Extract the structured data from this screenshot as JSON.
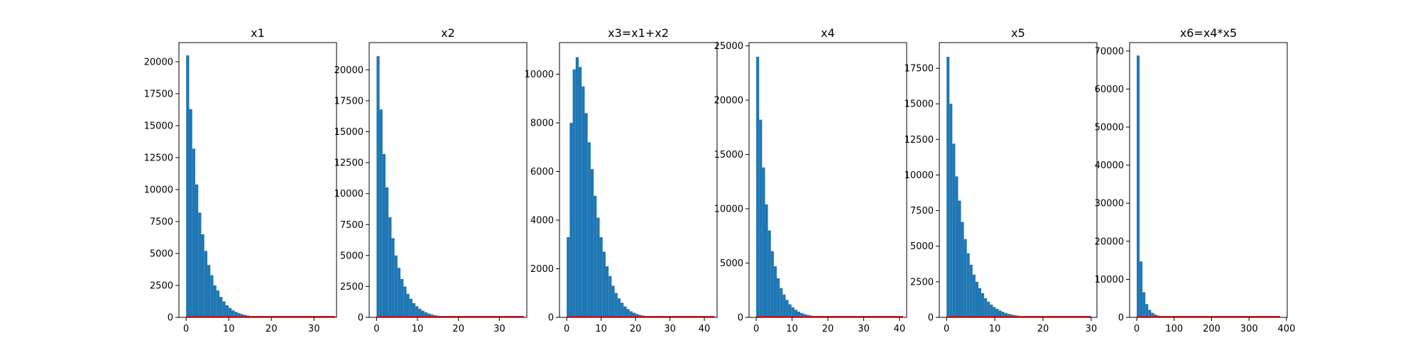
{
  "figure": {
    "background": "#ffffff",
    "bar_color": "#1f77b4",
    "overlay_line_color": "#d62728"
  },
  "chart_data": [
    {
      "type": "bar",
      "title": "x1",
      "xlim": [
        -1.7,
        35.3
      ],
      "ylim": [
        0,
        21500
      ],
      "xticks": [
        0,
        10,
        20,
        30
      ],
      "yticks": [
        0,
        2500,
        5000,
        7500,
        10000,
        12500,
        15000,
        17500,
        20000
      ],
      "bin_edges": [
        0,
        0.71,
        1.42,
        2.13,
        2.84,
        3.55,
        4.26,
        4.97,
        5.68,
        6.39,
        7.1,
        7.81,
        8.52,
        9.23,
        9.94,
        10.65,
        11.36,
        12.07,
        12.78,
        13.49,
        14.2,
        14.91,
        15.62,
        16.33,
        17.04,
        17.75
      ],
      "counts": [
        20500,
        16300,
        13200,
        10400,
        8200,
        6500,
        5200,
        4100,
        3300,
        2500,
        2100,
        1600,
        1250,
        950,
        740,
        560,
        430,
        330,
        250,
        190,
        140,
        105,
        80,
        60,
        45
      ],
      "overlay_line": {
        "x": [
          0,
          35
        ],
        "y": [
          0,
          0
        ]
      }
    },
    {
      "type": "bar",
      "title": "x2",
      "xlim": [
        -1.8,
        36.7
      ],
      "ylim": [
        0,
        22200
      ],
      "xticks": [
        0,
        10,
        20,
        30
      ],
      "yticks": [
        0,
        2500,
        5000,
        7500,
        10000,
        12500,
        15000,
        17500,
        20000
      ],
      "bin_edges": [
        0,
        0.73,
        1.46,
        2.19,
        2.92,
        3.65,
        4.38,
        5.11,
        5.84,
        6.57,
        7.3,
        8.03,
        8.76,
        9.49,
        10.22,
        10.95,
        11.68,
        12.41,
        13.14,
        13.87,
        14.6,
        15.33,
        16.06,
        16.79,
        17.52,
        18.25
      ],
      "counts": [
        21100,
        16800,
        13200,
        10500,
        8100,
        6400,
        5000,
        4000,
        3100,
        2500,
        1900,
        1500,
        1150,
        900,
        700,
        540,
        410,
        310,
        240,
        180,
        135,
        100,
        75,
        55,
        40
      ],
      "overlay_line": {
        "x": [
          0,
          36
        ],
        "y": [
          0,
          0
        ]
      }
    },
    {
      "type": "bar",
      "title": "x3=x1+x2",
      "xlim": [
        -2.1,
        43.7
      ],
      "ylim": [
        0,
        11300
      ],
      "xticks": [
        0,
        10,
        20,
        30,
        40
      ],
      "yticks": [
        0,
        2000,
        4000,
        6000,
        8000,
        10000
      ],
      "bin_edges": [
        0,
        0.87,
        1.74,
        2.61,
        3.48,
        4.35,
        5.22,
        6.09,
        6.96,
        7.83,
        8.7,
        9.57,
        10.44,
        11.31,
        12.18,
        13.05,
        13.92,
        14.79,
        15.66,
        16.53,
        17.4,
        18.27,
        19.14,
        20.01,
        20.88,
        21.75,
        22.62,
        23.49,
        24.36,
        25.23,
        26.1,
        26.97,
        27.84
      ],
      "counts": [
        3300,
        8000,
        10200,
        10700,
        10300,
        9500,
        8400,
        7200,
        6100,
        5000,
        4100,
        3300,
        2700,
        2100,
        1700,
        1300,
        1000,
        780,
        600,
        450,
        340,
        250,
        190,
        140,
        100,
        75,
        55,
        40,
        30,
        20,
        15,
        10
      ],
      "overlay_line": {
        "x": [
          0,
          43
        ],
        "y": [
          0,
          0
        ]
      }
    },
    {
      "type": "bar",
      "title": "x4",
      "xlim": [
        -2.0,
        42.0
      ],
      "ylim": [
        0,
        25300
      ],
      "xticks": [
        0,
        10,
        20,
        30,
        40
      ],
      "yticks": [
        0,
        5000,
        10000,
        15000,
        20000,
        25000
      ],
      "bin_edges": [
        0,
        0.82,
        1.64,
        2.46,
        3.28,
        4.1,
        4.92,
        5.74,
        6.56,
        7.38,
        8.2,
        9.02,
        9.84,
        10.66,
        11.48,
        12.3,
        13.12,
        13.94,
        14.76,
        15.58,
        16.4,
        17.22,
        18.04,
        18.86,
        19.68,
        20.5
      ],
      "counts": [
        24000,
        18200,
        13800,
        10400,
        8000,
        6100,
        4700,
        3600,
        2700,
        2100,
        1600,
        1200,
        920,
        700,
        530,
        400,
        300,
        230,
        175,
        130,
        100,
        75,
        55,
        40,
        30
      ],
      "overlay_line": {
        "x": [
          0,
          41
        ],
        "y": [
          0,
          0
        ]
      }
    },
    {
      "type": "bar",
      "title": "x5",
      "xlim": [
        -1.5,
        31.2
      ],
      "ylim": [
        0,
        19300
      ],
      "xticks": [
        0,
        10,
        20,
        30
      ],
      "yticks": [
        0,
        2500,
        5000,
        7500,
        10000,
        12500,
        15000,
        17500
      ],
      "bin_edges": [
        0,
        0.6,
        1.2,
        1.8,
        2.4,
        3.0,
        3.6,
        4.2,
        4.8,
        5.4,
        6.0,
        6.6,
        7.2,
        7.8,
        8.4,
        9.0,
        9.6,
        10.2,
        10.8,
        11.4,
        12.0,
        12.6,
        13.2,
        13.8,
        14.4,
        15.0,
        15.6,
        16.2,
        16.8,
        17.4,
        18.0
      ],
      "counts": [
        18300,
        15000,
        12200,
        9900,
        8200,
        6700,
        5500,
        4500,
        3700,
        3000,
        2500,
        2050,
        1700,
        1350,
        1100,
        900,
        730,
        600,
        480,
        390,
        310,
        250,
        200,
        160,
        130,
        100,
        80,
        60,
        45,
        35
      ],
      "overlay_line": {
        "x": [
          0,
          30
        ],
        "y": [
          0,
          0
        ]
      }
    },
    {
      "type": "bar",
      "title": "x6=x4*x5",
      "xlim": [
        -19,
        402
      ],
      "ylim": [
        0,
        72200
      ],
      "xticks": [
        0,
        100,
        200,
        300,
        400
      ],
      "yticks": [
        0,
        10000,
        20000,
        30000,
        40000,
        50000,
        60000,
        70000
      ],
      "bin_edges": [
        0,
        7.7,
        15.4,
        23.1,
        30.8,
        38.5,
        46.2,
        53.9,
        61.6,
        69.3,
        77.0,
        84.7,
        92.4,
        100.1,
        107.8,
        115.5
      ],
      "counts": [
        68800,
        14700,
        6600,
        3500,
        2000,
        1200,
        750,
        480,
        310,
        200,
        130,
        85,
        55,
        35,
        20
      ],
      "overlay_line": {
        "x": [
          0,
          383
        ],
        "y": [
          0,
          0
        ]
      }
    }
  ]
}
